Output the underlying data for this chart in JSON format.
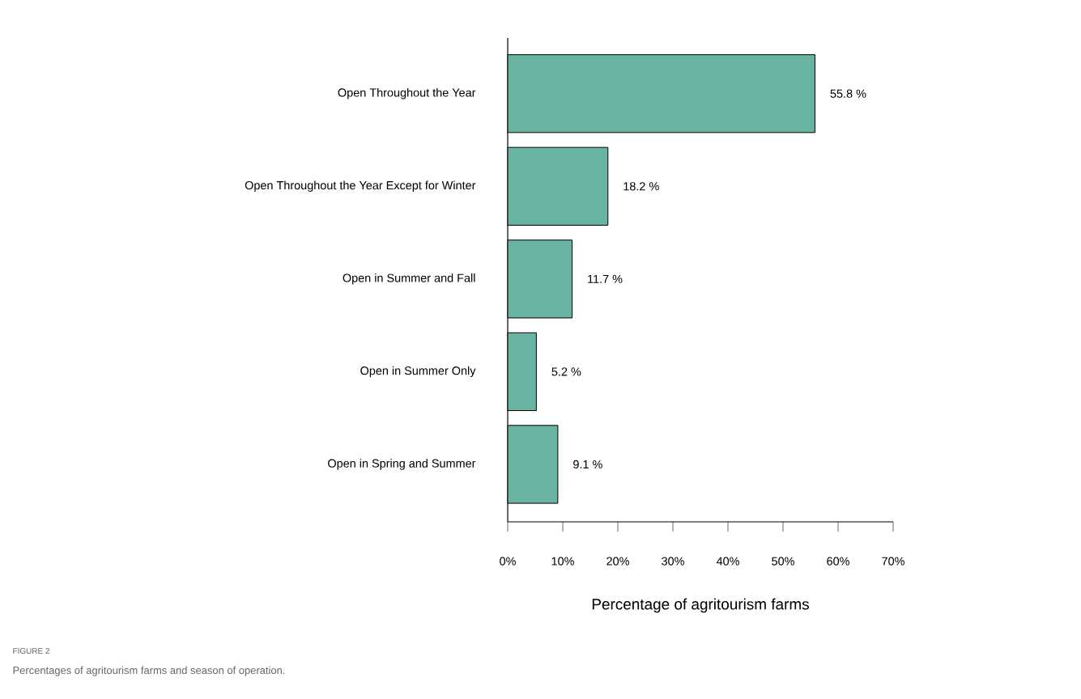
{
  "chart_data": {
    "type": "bar",
    "orientation": "horizontal",
    "categories": [
      "Open Throughout the Year",
      "Open Throughout the Year Except for Winter",
      "Open in Summer and Fall",
      "Open in Summer Only",
      "Open in Spring and Summer"
    ],
    "values": [
      55.8,
      18.2,
      11.7,
      5.2,
      9.1
    ],
    "value_labels": [
      "55.8 %",
      "18.2 %",
      "11.7 %",
      "5.2 %",
      "9.1 %"
    ],
    "color": "#69b3a3",
    "xlim": [
      0,
      70
    ],
    "xticks": [
      {
        "value": 0,
        "label": "0%"
      },
      {
        "value": 10,
        "label": "10%"
      },
      {
        "value": 20,
        "label": "20%"
      },
      {
        "value": 30,
        "label": "30%"
      },
      {
        "value": 40,
        "label": "40%"
      },
      {
        "value": 50,
        "label": "50%"
      },
      {
        "value": 60,
        "label": "60%"
      },
      {
        "value": 70,
        "label": "70%"
      }
    ],
    "xlabel": "Percentage of agritourism farms",
    "annotations": [
      "FIGURE 2",
      "Percentages of agritourism farms and season of operation."
    ]
  }
}
